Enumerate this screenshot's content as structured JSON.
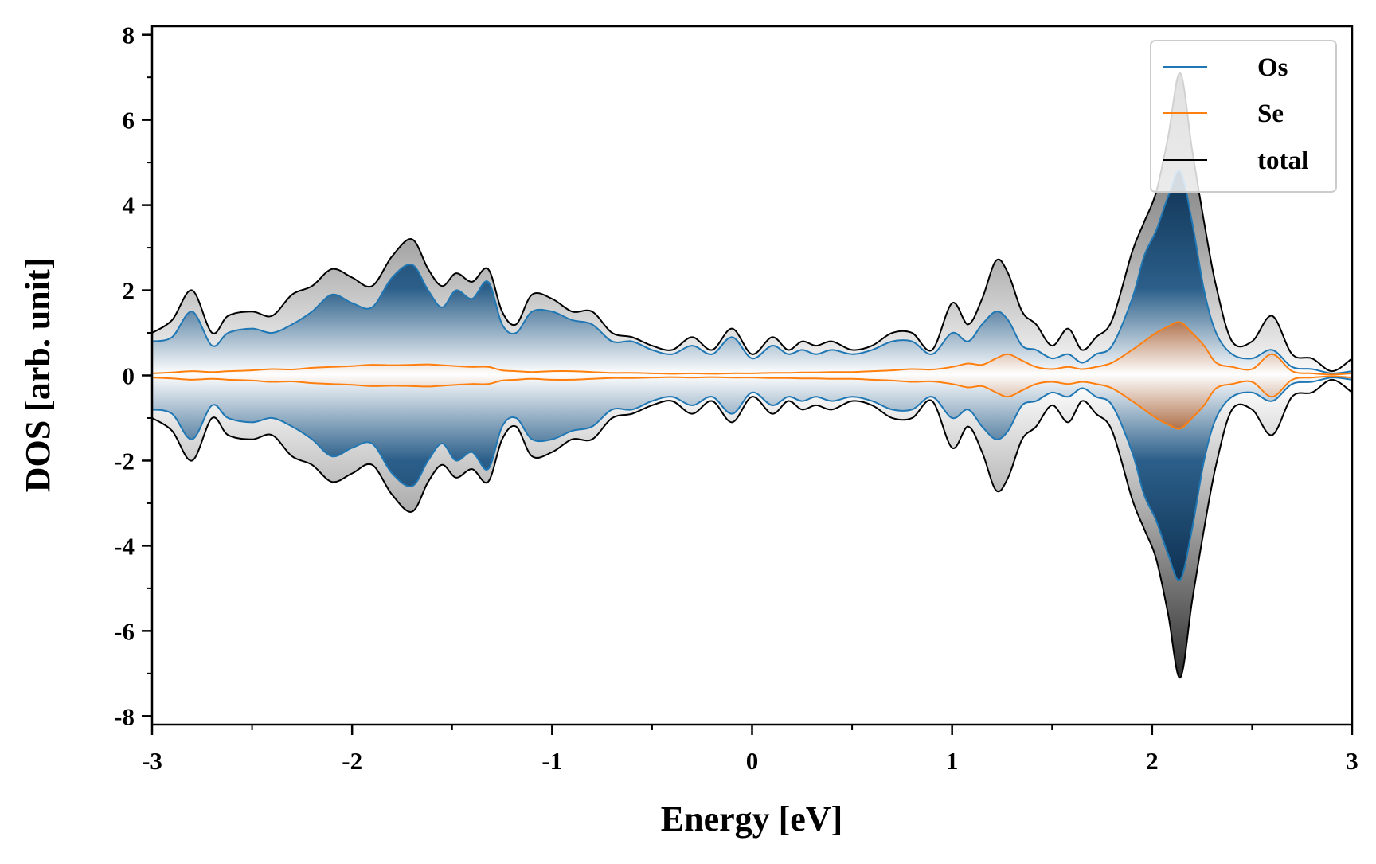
{
  "chart_data": {
    "type": "area",
    "xlabel": "Energy [eV]",
    "ylabel": "DOS [arb. unit]",
    "xlim": [
      -3,
      3
    ],
    "ylim": [
      -8.2,
      8.2
    ],
    "xticks": [
      -3,
      -2,
      -1,
      0,
      1,
      2,
      3
    ],
    "xtick_labels": [
      "-3",
      "-2",
      "-1",
      "0",
      "1",
      "2",
      "3"
    ],
    "yticks": [
      -8,
      -6,
      -4,
      -2,
      0,
      2,
      4,
      6,
      8
    ],
    "ytick_labels": [
      "-8",
      "-6",
      "-4",
      "-2",
      "0",
      "2",
      "4",
      "6",
      "8"
    ],
    "grid": false,
    "legend_position": "top-right",
    "mirrored": true,
    "colors": {
      "Os": "#1f77b4",
      "Se": "#ff7f0e",
      "total": "#000000"
    },
    "legend": [
      "Os",
      "Se",
      "total"
    ],
    "series": [
      {
        "name": "total",
        "x": [
          -3.0,
          -2.9,
          -2.8,
          -2.7,
          -2.62,
          -2.5,
          -2.4,
          -2.3,
          -2.2,
          -2.1,
          -2.0,
          -1.9,
          -1.8,
          -1.7,
          -1.62,
          -1.55,
          -1.48,
          -1.4,
          -1.32,
          -1.25,
          -1.18,
          -1.1,
          -1.0,
          -0.9,
          -0.8,
          -0.7,
          -0.6,
          -0.5,
          -0.4,
          -0.3,
          -0.2,
          -0.1,
          0.0,
          0.1,
          0.18,
          0.25,
          0.32,
          0.4,
          0.5,
          0.6,
          0.7,
          0.8,
          0.9,
          1.0,
          1.08,
          1.15,
          1.22,
          1.28,
          1.35,
          1.42,
          1.5,
          1.58,
          1.65,
          1.72,
          1.8,
          1.9,
          1.96,
          2.02,
          2.08,
          2.14,
          2.2,
          2.26,
          2.32,
          2.4,
          2.5,
          2.6,
          2.7,
          2.8,
          2.9,
          3.0
        ],
        "values": [
          1.0,
          1.3,
          2.0,
          1.0,
          1.4,
          1.5,
          1.4,
          1.9,
          2.1,
          2.5,
          2.3,
          2.1,
          2.8,
          3.2,
          2.5,
          2.1,
          2.4,
          2.2,
          2.5,
          1.5,
          1.2,
          1.9,
          1.8,
          1.5,
          1.5,
          1.0,
          0.9,
          0.7,
          0.6,
          0.9,
          0.6,
          1.1,
          0.5,
          0.9,
          0.6,
          0.8,
          0.7,
          0.8,
          0.6,
          0.7,
          1.0,
          1.0,
          0.6,
          1.7,
          1.2,
          1.8,
          2.7,
          2.4,
          1.5,
          1.2,
          0.7,
          1.1,
          0.6,
          0.9,
          1.3,
          2.9,
          3.6,
          4.3,
          5.6,
          7.1,
          5.3,
          3.6,
          2.1,
          0.8,
          0.8,
          1.4,
          0.5,
          0.4,
          0.1,
          0.4
        ]
      },
      {
        "name": "Os",
        "x": [
          -3.0,
          -2.9,
          -2.8,
          -2.7,
          -2.62,
          -2.5,
          -2.4,
          -2.3,
          -2.2,
          -2.1,
          -2.0,
          -1.9,
          -1.8,
          -1.7,
          -1.62,
          -1.55,
          -1.48,
          -1.4,
          -1.32,
          -1.25,
          -1.18,
          -1.1,
          -1.0,
          -0.9,
          -0.8,
          -0.7,
          -0.6,
          -0.5,
          -0.4,
          -0.3,
          -0.2,
          -0.1,
          0.0,
          0.1,
          0.18,
          0.25,
          0.32,
          0.4,
          0.5,
          0.6,
          0.7,
          0.8,
          0.9,
          1.0,
          1.08,
          1.15,
          1.22,
          1.28,
          1.35,
          1.42,
          1.5,
          1.58,
          1.65,
          1.72,
          1.8,
          1.9,
          1.96,
          2.02,
          2.08,
          2.14,
          2.2,
          2.26,
          2.32,
          2.4,
          2.5,
          2.6,
          2.7,
          2.8,
          2.9,
          3.0
        ],
        "values": [
          0.8,
          0.9,
          1.5,
          0.7,
          1.0,
          1.1,
          1.0,
          1.2,
          1.5,
          1.9,
          1.7,
          1.6,
          2.3,
          2.6,
          2.0,
          1.6,
          2.0,
          1.8,
          2.2,
          1.2,
          1.0,
          1.5,
          1.5,
          1.3,
          1.2,
          0.8,
          0.8,
          0.6,
          0.5,
          0.7,
          0.5,
          0.9,
          0.4,
          0.7,
          0.5,
          0.6,
          0.5,
          0.6,
          0.5,
          0.6,
          0.8,
          0.8,
          0.5,
          1.0,
          0.8,
          1.2,
          1.5,
          1.3,
          0.7,
          0.6,
          0.4,
          0.5,
          0.3,
          0.5,
          0.7,
          1.8,
          2.8,
          3.4,
          4.2,
          4.8,
          3.6,
          2.0,
          1.0,
          0.5,
          0.4,
          0.6,
          0.2,
          0.15,
          0.05,
          0.1
        ]
      },
      {
        "name": "Se",
        "x": [
          -3.0,
          -2.9,
          -2.8,
          -2.7,
          -2.62,
          -2.5,
          -2.4,
          -2.3,
          -2.2,
          -2.1,
          -2.0,
          -1.9,
          -1.8,
          -1.7,
          -1.62,
          -1.55,
          -1.48,
          -1.4,
          -1.32,
          -1.25,
          -1.18,
          -1.1,
          -1.0,
          -0.9,
          -0.8,
          -0.7,
          -0.6,
          -0.5,
          -0.4,
          -0.3,
          -0.2,
          -0.1,
          0.0,
          0.1,
          0.18,
          0.25,
          0.32,
          0.4,
          0.5,
          0.6,
          0.7,
          0.8,
          0.9,
          1.0,
          1.08,
          1.15,
          1.22,
          1.28,
          1.35,
          1.42,
          1.5,
          1.58,
          1.65,
          1.72,
          1.8,
          1.9,
          1.96,
          2.02,
          2.08,
          2.14,
          2.2,
          2.26,
          2.32,
          2.4,
          2.5,
          2.6,
          2.7,
          2.8,
          2.9,
          3.0
        ],
        "values": [
          0.05,
          0.07,
          0.1,
          0.08,
          0.1,
          0.12,
          0.15,
          0.14,
          0.18,
          0.2,
          0.22,
          0.25,
          0.24,
          0.25,
          0.26,
          0.24,
          0.22,
          0.2,
          0.2,
          0.12,
          0.1,
          0.08,
          0.1,
          0.1,
          0.08,
          0.06,
          0.06,
          0.05,
          0.04,
          0.05,
          0.04,
          0.05,
          0.05,
          0.06,
          0.06,
          0.07,
          0.07,
          0.08,
          0.08,
          0.1,
          0.12,
          0.15,
          0.14,
          0.2,
          0.28,
          0.25,
          0.4,
          0.5,
          0.35,
          0.2,
          0.15,
          0.2,
          0.15,
          0.2,
          0.3,
          0.6,
          0.8,
          1.0,
          1.15,
          1.25,
          1.0,
          0.7,
          0.3,
          0.2,
          0.15,
          0.5,
          0.1,
          0.05,
          0.02,
          0.05
        ]
      }
    ]
  }
}
